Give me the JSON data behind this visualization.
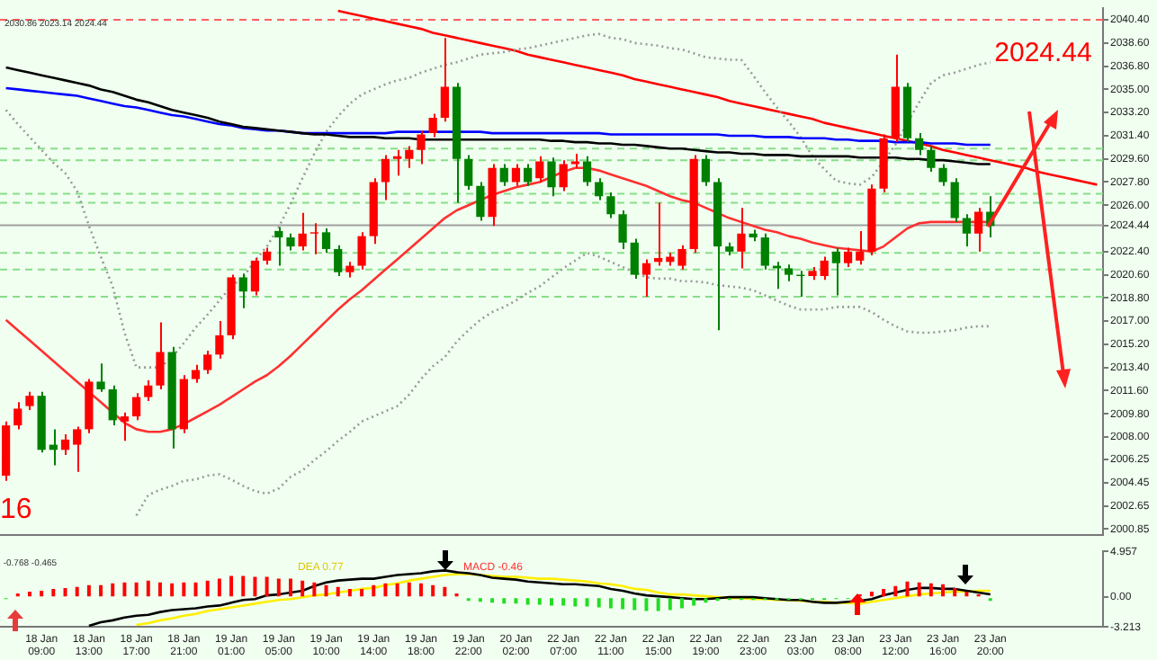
{
  "chart_data": [
    {
      "type": "candlestick",
      "categories": [
        null,
        null,
        null,
        null,
        null,
        null,
        null,
        null,
        null,
        null,
        null,
        null,
        null,
        null,
        null,
        null,
        null,
        null,
        null,
        null,
        null,
        null,
        null,
        null,
        null,
        null,
        null,
        null,
        null,
        null,
        null,
        null,
        null,
        null,
        null,
        null,
        null,
        null,
        null,
        null,
        null,
        null,
        null,
        null,
        null,
        null,
        null,
        null,
        null,
        null,
        null,
        null,
        null,
        null,
        null,
        null,
        null,
        null,
        null,
        null,
        null,
        null,
        null,
        null,
        null,
        null,
        null,
        null,
        null,
        null,
        null,
        null,
        null,
        null,
        null,
        null,
        null,
        null,
        null,
        null,
        null,
        null,
        null,
        null,
        null,
        null,
        null,
        null,
        null,
        null,
        null,
        null,
        null
      ],
      "ohlc": [
        [
          2005.0,
          2009.2,
          2004.6,
          2008.9
        ],
        [
          2008.9,
          2010.7,
          2008.6,
          2010.2
        ],
        [
          2010.4,
          2011.5,
          2010.1,
          2011.2
        ],
        [
          2011.2,
          2011.5,
          2006.8,
          2007.0
        ],
        [
          2007.4,
          2008.6,
          2005.8,
          2007.0
        ],
        [
          2007.0,
          2008.2,
          2006.6,
          2007.8
        ],
        [
          2007.4,
          2008.8,
          2005.3,
          2008.6
        ],
        [
          2008.6,
          2012.5,
          2008.3,
          2012.3
        ],
        [
          2012.3,
          2013.7,
          2011.5,
          2011.7
        ],
        [
          2011.7,
          2012.0,
          2008.9,
          2009.3
        ],
        [
          2009.2,
          2009.9,
          2007.7,
          2009.6
        ],
        [
          2009.6,
          2011.4,
          2009.3,
          2011.1
        ],
        [
          2011.1,
          2012.4,
          2010.8,
          2012.0
        ],
        [
          2012.0,
          2016.9,
          2011.7,
          2014.6
        ],
        [
          2014.6,
          2015.0,
          2007.1,
          2008.6
        ],
        [
          2008.6,
          2012.8,
          2008.3,
          2012.5
        ],
        [
          2012.5,
          2013.6,
          2012.2,
          2013.2
        ],
        [
          2013.2,
          2014.7,
          2012.9,
          2014.4
        ],
        [
          2014.4,
          2017.0,
          2014.1,
          2015.9
        ],
        [
          2015.9,
          2020.6,
          2015.6,
          2020.4
        ],
        [
          2020.4,
          2020.7,
          2018.0,
          2019.3
        ],
        [
          2019.3,
          2021.9,
          2019.0,
          2021.7
        ],
        [
          2021.7,
          2022.7,
          2021.4,
          2022.4
        ],
        [
          2024.0,
          2024.3,
          2021.3,
          2023.5
        ],
        [
          2023.5,
          2023.8,
          2022.5,
          2022.8
        ],
        [
          2022.8,
          2025.4,
          2022.5,
          2023.8
        ],
        [
          2023.8,
          2024.6,
          2022.2,
          2023.9
        ],
        [
          2023.9,
          2024.2,
          2022.3,
          2022.6
        ],
        [
          2022.6,
          2022.9,
          2020.5,
          2020.8
        ],
        [
          2020.8,
          2021.6,
          2020.4,
          2021.3
        ],
        [
          2021.3,
          2023.9,
          2021.0,
          2023.6
        ],
        [
          2023.6,
          2028.1,
          2023.0,
          2027.8
        ],
        [
          2027.8,
          2029.9,
          2026.4,
          2029.6
        ],
        [
          2029.6,
          2030.3,
          2028.3,
          2029.8
        ],
        [
          2029.6,
          2030.6,
          2028.9,
          2030.3
        ],
        [
          2030.3,
          2031.8,
          2029.2,
          2031.5
        ],
        [
          2031.6,
          2033.1,
          2031.3,
          2032.8
        ],
        [
          2032.8,
          2039.0,
          2032.5,
          2035.2
        ],
        [
          2035.2,
          2035.5,
          2026.2,
          2029.6
        ],
        [
          2029.6,
          2029.9,
          2027.2,
          2027.5
        ],
        [
          2027.5,
          2027.8,
          2024.8,
          2025.1
        ],
        [
          2025.1,
          2029.2,
          2024.4,
          2028.9
        ],
        [
          2028.9,
          2029.2,
          2027.5,
          2027.8
        ],
        [
          2027.8,
          2029.2,
          2027.5,
          2028.9
        ],
        [
          2028.9,
          2029.2,
          2027.5,
          2027.8
        ],
        [
          2028.1,
          2029.8,
          2027.8,
          2029.4
        ],
        [
          2029.4,
          2029.7,
          2026.7,
          2027.4
        ],
        [
          2027.4,
          2029.5,
          2027.1,
          2029.2
        ],
        [
          2029.2,
          2030.0,
          2028.9,
          2029.4
        ],
        [
          2029.4,
          2029.8,
          2027.5,
          2027.8
        ],
        [
          2027.8,
          2028.1,
          2026.4,
          2026.7
        ],
        [
          2026.7,
          2027.0,
          2025.0,
          2025.3
        ],
        [
          2025.3,
          2025.6,
          2022.6,
          2023.1
        ],
        [
          2023.1,
          2023.4,
          2020.3,
          2020.6
        ],
        [
          2020.6,
          2021.8,
          2018.9,
          2021.5
        ],
        [
          2021.6,
          2026.2,
          2021.3,
          2021.9
        ],
        [
          2021.6,
          2022.3,
          2021.3,
          2022.0
        ],
        [
          2021.3,
          2022.9,
          2021.0,
          2022.6
        ],
        [
          2022.6,
          2029.9,
          2022.3,
          2029.6
        ],
        [
          2029.6,
          2029.9,
          2027.5,
          2027.8
        ],
        [
          2027.8,
          2028.1,
          2016.3,
          2022.8
        ],
        [
          2022.8,
          2023.1,
          2022.1,
          2022.4
        ],
        [
          2022.4,
          2025.8,
          2021.1,
          2023.8
        ],
        [
          2023.8,
          2024.1,
          2023.2,
          2023.5
        ],
        [
          2023.5,
          2023.8,
          2021.0,
          2021.3
        ],
        [
          2021.3,
          2021.6,
          2019.5,
          2021.1
        ],
        [
          2021.1,
          2021.4,
          2020.1,
          2020.6
        ],
        [
          2020.6,
          2020.9,
          2018.9,
          2020.5
        ],
        [
          2020.5,
          2021.2,
          2020.2,
          2020.9
        ],
        [
          2020.5,
          2022.0,
          2020.2,
          2021.7
        ],
        [
          2022.4,
          2022.7,
          2019.0,
          2021.5
        ],
        [
          2021.5,
          2022.7,
          2021.2,
          2022.4
        ],
        [
          2021.7,
          2024.0,
          2021.4,
          2022.4
        ],
        [
          2022.4,
          2027.6,
          2022.1,
          2027.3
        ],
        [
          2027.3,
          2031.5,
          2027.0,
          2031.2
        ],
        [
          2031.2,
          2037.7,
          2030.9,
          2035.2
        ],
        [
          2035.2,
          2035.5,
          2030.9,
          2031.2
        ],
        [
          2031.2,
          2031.6,
          2029.9,
          2030.3
        ],
        [
          2030.3,
          2030.6,
          2028.6,
          2028.9
        ],
        [
          2028.9,
          2029.2,
          2027.5,
          2027.8
        ],
        [
          2027.8,
          2028.1,
          2024.7,
          2025.0
        ],
        [
          2025.0,
          2025.3,
          2022.8,
          2023.8
        ],
        [
          2023.8,
          2025.8,
          2022.4,
          2025.5
        ],
        [
          2025.5,
          2026.7,
          2023.5,
          2024.4
        ],
        null,
        null,
        null,
        null,
        null,
        null,
        null,
        null,
        null
      ],
      "colors": [
        "#ff0000",
        "#ff0000",
        "#ff0000",
        "#008000",
        "#008000",
        "#ff0000",
        "#ff0000",
        "#ff0000",
        "#008000",
        "#008000",
        "#ff0000",
        "#ff0000",
        "#ff0000",
        "#ff0000",
        "#008000",
        "#ff0000",
        "#ff0000",
        "#ff0000",
        "#ff0000",
        "#ff0000",
        "#008000",
        "#ff0000",
        "#ff0000",
        "#008000",
        "#008000",
        "#ff0000",
        "#ff0000",
        "#008000",
        "#008000",
        "#ff0000",
        "#ff0000",
        "#ff0000",
        "#ff0000",
        "#ff0000",
        "#ff0000",
        "#ff0000",
        "#ff0000",
        "#ff0000",
        "#008000",
        "#008000",
        "#008000",
        "#ff0000",
        "#008000",
        "#ff0000",
        "#008000",
        "#ff0000",
        "#008000",
        "#ff0000",
        "#ff0000",
        "#008000",
        "#008000",
        "#008000",
        "#008000",
        "#008000",
        "#ff0000",
        "#ff0000",
        "#ff0000",
        "#ff0000",
        "#ff0000",
        "#008000",
        "#008000",
        "#008000",
        "#ff0000",
        "#008000",
        "#008000",
        "#008000",
        "#008000",
        "#008000",
        "#ff0000",
        "#ff0000",
        "#008000",
        "#ff0000",
        "#ff0000",
        "#ff0000",
        "#ff0000",
        "#ff0000",
        "#008000",
        "#008000",
        "#008000",
        "#008000",
        "#008000",
        "#008000",
        "#ff0000",
        "#008000",
        null,
        null,
        null,
        null,
        null,
        null,
        null,
        null,
        null
      ],
      "series": [
        {
          "type": "line",
          "color": "#ff3030",
          "values": [
            2017.1,
            2016.3,
            2015.5,
            2014.7,
            2013.9,
            2013.1,
            2012.3,
            2011.5,
            2010.7,
            2009.9,
            2009.1,
            2008.6,
            2008.4,
            2008.4,
            2008.6,
            2009.0,
            2009.5,
            2010.0,
            2010.5,
            2011.1,
            2011.7,
            2012.3,
            2012.8,
            2013.5,
            2014.3,
            2015.2,
            2016.1,
            2017.0,
            2017.9,
            2018.7,
            2019.4,
            2020.2,
            2021.0,
            2021.8,
            2022.6,
            2023.4,
            2024.2,
            2025.0,
            2025.6,
            2026.0,
            2026.4,
            2026.8,
            2027.1,
            2027.4,
            2027.6,
            2027.8,
            2028.2,
            2028.6,
            2028.9,
            2028.9,
            2028.7,
            2028.4,
            2028.1,
            2027.8,
            2027.5,
            2027.1,
            2026.7,
            2026.4,
            2026.2,
            2025.8,
            2025.4,
            2025.0,
            2024.7,
            2024.4,
            2024.1,
            2023.9,
            2023.6,
            2023.4,
            2023.1,
            2022.9,
            2022.7,
            2022.6,
            2022.5,
            2022.4,
            2022.8,
            2023.5,
            2024.2,
            2024.6,
            2024.7,
            2024.7,
            2024.7,
            2024.7,
            2024.7,
            2024.7,
            null,
            null,
            null,
            null,
            null,
            null,
            null,
            null,
            null
          ]
        },
        {
          "type": "line",
          "color": "#000000",
          "values": [
            2036.7,
            2036.5,
            2036.3,
            2036.1,
            2035.9,
            2035.7,
            2035.5,
            2035.3,
            2035.0,
            2034.8,
            2034.5,
            2034.2,
            2034.0,
            2033.7,
            2033.4,
            2033.2,
            2033.0,
            2032.8,
            2032.5,
            2032.3,
            2032.1,
            2032.0,
            2031.9,
            2031.8,
            2031.7,
            2031.6,
            2031.5,
            2031.5,
            2031.4,
            2031.3,
            2031.3,
            2031.3,
            2031.2,
            2031.2,
            2031.2,
            2031.1,
            2031.1,
            2031.1,
            2031.1,
            2031.1,
            2031.1,
            2031.1,
            2031.1,
            2031.1,
            2031.1,
            2031.1,
            2031.0,
            2031.0,
            2030.9,
            2030.9,
            2030.8,
            2030.8,
            2030.7,
            2030.7,
            2030.6,
            2030.5,
            2030.4,
            2030.4,
            2030.3,
            2030.2,
            2030.1,
            2030.1,
            2030.0,
            2030.0,
            2029.9,
            2029.9,
            2029.9,
            2029.8,
            2029.8,
            2029.8,
            2029.8,
            2029.8,
            2029.7,
            2029.7,
            2029.7,
            2029.7,
            2029.6,
            2029.6,
            2029.5,
            2029.5,
            2029.4,
            2029.3,
            2029.2,
            2029.2,
            null,
            null,
            null,
            null,
            null,
            null,
            null,
            null,
            null
          ]
        },
        {
          "type": "line",
          "color": "#0000ff",
          "values": [
            2035.1,
            2035.0,
            2034.9,
            2034.8,
            2034.7,
            2034.6,
            2034.5,
            2034.3,
            2034.1,
            2033.9,
            2033.7,
            2033.6,
            2033.4,
            2033.2,
            2033.0,
            2032.9,
            2032.7,
            2032.5,
            2032.3,
            2032.2,
            2032.0,
            2031.9,
            2031.8,
            2031.8,
            2031.7,
            2031.6,
            2031.6,
            2031.6,
            2031.6,
            2031.6,
            2031.6,
            2031.6,
            2031.6,
            2031.7,
            2031.7,
            2031.7,
            2031.7,
            2031.7,
            2031.7,
            2031.7,
            2031.7,
            2031.6,
            2031.6,
            2031.6,
            2031.6,
            2031.6,
            2031.6,
            2031.6,
            2031.6,
            2031.6,
            2031.6,
            2031.5,
            2031.5,
            2031.5,
            2031.5,
            2031.5,
            2031.5,
            2031.5,
            2031.5,
            2031.5,
            2031.5,
            2031.4,
            2031.4,
            2031.4,
            2031.3,
            2031.3,
            2031.3,
            2031.2,
            2031.2,
            2031.2,
            2031.1,
            2031.1,
            2031.0,
            2031.0,
            2031.0,
            2030.9,
            2030.9,
            2030.9,
            2030.8,
            2030.8,
            2030.8,
            2030.7,
            2030.7,
            2030.7,
            null,
            null,
            null,
            null,
            null,
            null,
            null,
            null,
            null
          ]
        },
        {
          "type": "line",
          "color": "#999999",
          "line_style": "dotted",
          "values": [
            2033.4,
            2032.3,
            2031.3,
            2030.3,
            2029.3,
            2028.5,
            2027.1,
            2024.4,
            2022.0,
            2019.7,
            2016.1,
            2013.4,
            2013.4,
            2013.4,
            2014.2,
            2015.3,
            2016.5,
            2017.5,
            2018.6,
            2019.7,
            2020.4,
            2021.7,
            2022.8,
            2024.3,
            2026.1,
            2028.1,
            2030.0,
            2031.7,
            2032.9,
            2033.9,
            2034.6,
            2035.0,
            2035.4,
            2035.7,
            2035.9,
            2036.3,
            2036.6,
            2036.9,
            2037.1,
            2037.4,
            2037.7,
            2037.8,
            2037.9,
            2038.1,
            2038.2,
            2038.4,
            2038.6,
            2038.8,
            2039.0,
            2039.2,
            2039.3,
            2039.0,
            2038.9,
            2038.6,
            2038.5,
            2038.4,
            2038.2,
            2038.1,
            2037.8,
            2037.5,
            2037.4,
            2037.3,
            2037.3,
            2036.1,
            2034.8,
            2033.6,
            2032.5,
            2031.3,
            2029.8,
            2028.8,
            2027.9,
            2027.7,
            2027.6,
            2028.2,
            2029.4,
            2030.7,
            2032.4,
            2034.0,
            2035.5,
            2036.1,
            2036.3,
            2036.6,
            2036.9,
            2037.1,
            null,
            null,
            null,
            null,
            null,
            null,
            null,
            null,
            null
          ]
        },
        {
          "type": "line",
          "color": "#999999",
          "line_style": "dotted",
          "values": [
            null,
            null,
            null,
            null,
            null,
            null,
            null,
            null,
            null,
            null,
            null,
            2001.9,
            2003.5,
            2003.9,
            2004.2,
            2004.6,
            2004.7,
            2005.0,
            2005.1,
            2004.7,
            2004.2,
            2003.8,
            2003.6,
            2004.0,
            2004.9,
            2005.4,
            2006.2,
            2006.9,
            2007.7,
            2008.4,
            2009.2,
            2009.6,
            2010.0,
            2010.4,
            2011.3,
            2012.5,
            2013.5,
            2014.2,
            2015.4,
            2016.3,
            2017.1,
            2017.7,
            2018.1,
            2018.6,
            2019.2,
            2019.7,
            2020.4,
            2021.1,
            2021.7,
            2022.3,
            2022.0,
            2021.6,
            2021.2,
            2020.8,
            2020.4,
            2020.3,
            2020.3,
            2020.1,
            2020.1,
            2020.0,
            2019.8,
            2019.7,
            2019.6,
            2019.4,
            2019.0,
            2018.6,
            2018.2,
            2017.9,
            2017.9,
            2017.9,
            2018.1,
            2018.1,
            2018.1,
            2017.7,
            2017.1,
            2016.6,
            2016.2,
            2016.1,
            2016.1,
            2016.2,
            2016.3,
            2016.5,
            2016.6,
            2016.6,
            null,
            null,
            null,
            null,
            null,
            null,
            null,
            null,
            null
          ]
        },
        {
          "type": "line",
          "color": "#ff0000",
          "values": [
            null,
            null,
            null,
            null,
            null,
            null,
            null,
            null,
            null,
            null,
            null,
            null,
            null,
            null,
            null,
            null,
            null,
            null,
            null,
            null,
            null,
            null,
            null,
            null,
            null,
            null,
            null,
            null,
            2041.1,
            2040.9,
            2040.7,
            2040.5,
            2040.3,
            2040.1,
            2039.9,
            2039.7,
            2039.4,
            2039.2,
            2039.0,
            2038.8,
            2038.6,
            2038.4,
            2038.2,
            2038.0,
            2037.7,
            2037.5,
            2037.3,
            2037.1,
            2036.9,
            2036.7,
            2036.5,
            2036.3,
            2036.1,
            2035.8,
            2035.6,
            2035.4,
            2035.2,
            2035.0,
            2034.8,
            2034.6,
            2034.4,
            2034.1,
            2033.9,
            2033.7,
            2033.5,
            2033.3,
            2033.1,
            2032.9,
            2032.7,
            2032.4,
            2032.2,
            2032.0,
            2031.8,
            2031.6,
            2031.4,
            2031.2,
            2031.0,
            2030.8,
            2030.6,
            2030.3,
            2030.1,
            2029.9,
            2029.7,
            2029.5,
            2029.3,
            2029.1,
            2028.9,
            2028.6,
            2028.4,
            2028.2,
            2028.0,
            2027.8,
            2027.6
          ]
        }
      ],
      "marker": "none",
      "ylim": [
        2000.4,
        2041.3
      ],
      "yticks": [
        {
          "value": 2040.4,
          "label": "2040.40"
        },
        {
          "value": 2038.6,
          "label": "2038.60"
        },
        {
          "value": 2036.8,
          "label": "2036.80"
        },
        {
          "value": 2035,
          "label": "2035.00"
        },
        {
          "value": 2033.2,
          "label": "2033.20"
        },
        {
          "value": 2031.4,
          "label": "2031.40"
        },
        {
          "value": 2029.6,
          "label": "2029.60"
        },
        {
          "value": 2027.8,
          "label": "2027.80"
        },
        {
          "value": 2026,
          "label": "2026.00"
        },
        2024.44,
        {
          "value": 2022.4,
          "label": "2022.40"
        },
        {
          "value": 2020.6,
          "label": "2020.60"
        },
        {
          "value": 2018.8,
          "label": "2018.80"
        },
        {
          "value": 2017,
          "label": "2017.00"
        },
        {
          "value": 2015.2,
          "label": "2015.20"
        },
        {
          "value": 2013.4,
          "label": "2013.40"
        },
        {
          "value": 2011.6,
          "label": "2011.60"
        },
        {
          "value": 2009.8,
          "label": "2009.80"
        },
        {
          "value": 2008,
          "label": "2008.00"
        },
        2006.25,
        2004.45,
        2002.65,
        2000.85
      ],
      "ref_lines": [
        {
          "axis": "y",
          "value": 2040.4,
          "color": "#ff6060",
          "line_style": "dashed"
        },
        {
          "axis": "y",
          "value": 2030.4,
          "color": "#88dd88",
          "line_style": "dashed"
        },
        {
          "axis": "y",
          "value": 2029.5,
          "color": "#88dd88",
          "line_style": "dashed"
        },
        {
          "axis": "y",
          "value": 2026.9,
          "color": "#88dd88",
          "line_style": "dashed"
        },
        {
          "axis": "y",
          "value": 2026.2,
          "color": "#88dd88",
          "line_style": "dashed"
        },
        {
          "axis": "y",
          "value": 2024.44,
          "color": "#a0a0a0",
          "line_style": "solid"
        },
        {
          "axis": "y",
          "value": 2022.3,
          "color": "#88dd88",
          "line_style": "dashed"
        },
        {
          "axis": "y",
          "value": 2021.0,
          "color": "#88dd88",
          "line_style": "dashed"
        },
        {
          "axis": "y",
          "value": 2018.9,
          "color": "#88dd88",
          "line_style": "dashed"
        }
      ],
      "annotations": [
        "2030.86 2023.14 2024.44",
        "2024.44",
        "16"
      ],
      "grid": false,
      "legend": false,
      "tick_labels": "y"
    },
    {
      "type": "bar",
      "categories": [
        null,
        null,
        null,
        "18 Jan 09:00",
        null,
        null,
        null,
        "18 Jan 13:00",
        null,
        null,
        null,
        "18 Jan 17:00",
        null,
        null,
        null,
        "18 Jan 21:00",
        null,
        null,
        null,
        "19 Jan 01:00",
        null,
        null,
        null,
        "19 Jan 05:00",
        null,
        null,
        null,
        "19 Jan 10:00",
        null,
        null,
        null,
        "19 Jan 14:00",
        null,
        null,
        null,
        "19 Jan 18:00",
        null,
        null,
        null,
        "19 Jan 22:00",
        null,
        null,
        null,
        "20 Jan 02:00",
        null,
        null,
        null,
        "22 Jan 07:00",
        null,
        null,
        null,
        "22 Jan 11:00",
        null,
        null,
        null,
        "22 Jan 15:00",
        null,
        null,
        null,
        "22 Jan 19:00",
        null,
        null,
        null,
        "22 Jan 23:00",
        null,
        null,
        null,
        "23 Jan 03:00",
        null,
        null,
        null,
        "23 Jan 08:00",
        null,
        null,
        null,
        "23 Jan 12:00",
        null,
        null,
        null,
        "23 Jan 16:00",
        null,
        null,
        null,
        "23 Jan 20:00",
        null,
        null,
        null,
        null,
        null,
        null,
        null,
        null,
        null
      ],
      "values": [
        -0.2,
        0.4,
        0.6,
        0.7,
        0.9,
        1.0,
        1.1,
        1.3,
        1.3,
        1.5,
        1.6,
        1.6,
        1.8,
        1.6,
        1.5,
        1.6,
        1.6,
        1.8,
        2.0,
        2.3,
        2.3,
        2.2,
        2.2,
        2.0,
        2.0,
        1.8,
        1.6,
        1.3,
        1.1,
        0.9,
        0.9,
        1.3,
        1.5,
        1.5,
        1.6,
        1.5,
        1.3,
        1.1,
        0.4,
        -0.4,
        -0.5,
        -0.6,
        -0.7,
        -0.7,
        -0.8,
        -0.8,
        -0.9,
        -0.9,
        -1.0,
        -1.0,
        -1.1,
        -1.2,
        -1.3,
        -1.4,
        -1.5,
        -1.5,
        -1.4,
        -1.2,
        -0.9,
        -0.6,
        -0.4,
        -0.3,
        -0.3,
        -0.3,
        -0.3,
        -0.3,
        -0.3,
        -0.3,
        -0.3,
        -0.3,
        -0.2,
        -0.2,
        0.3,
        0.6,
        0.9,
        1.2,
        1.7,
        1.6,
        1.5,
        1.4,
        1.0,
        0.6,
        0.3,
        -0.4,
        null,
        null,
        null,
        null,
        null,
        null,
        null,
        null,
        null
      ],
      "colors": [
        "#22dd22",
        "#ff0000",
        "#ff0000",
        "#ff0000",
        "#ff0000",
        "#ff0000",
        "#ff0000",
        "#ff0000",
        "#ff0000",
        "#ff0000",
        "#ff0000",
        "#ff0000",
        "#ff0000",
        "#ff0000",
        "#ff0000",
        "#ff0000",
        "#ff0000",
        "#ff0000",
        "#ff0000",
        "#ff0000",
        "#ff0000",
        "#ff0000",
        "#ff0000",
        "#ff0000",
        "#ff0000",
        "#ff0000",
        "#ff0000",
        "#ff0000",
        "#ff0000",
        "#ff0000",
        "#ff0000",
        "#ff0000",
        "#ff0000",
        "#ff0000",
        "#ff0000",
        "#ff0000",
        "#ff0000",
        "#ff0000",
        "#ff0000",
        "#22dd22",
        "#22dd22",
        "#22dd22",
        "#22dd22",
        "#22dd22",
        "#22dd22",
        "#22dd22",
        "#22dd22",
        "#22dd22",
        "#22dd22",
        "#22dd22",
        "#22dd22",
        "#22dd22",
        "#22dd22",
        "#22dd22",
        "#22dd22",
        "#22dd22",
        "#22dd22",
        "#22dd22",
        "#22dd22",
        "#22dd22",
        "#22dd22",
        "#22dd22",
        "#22dd22",
        "#22dd22",
        "#22dd22",
        "#22dd22",
        "#22dd22",
        "#22dd22",
        "#22dd22",
        "#22dd22",
        "#22dd22",
        "#22dd22",
        "#ff0000",
        "#ff0000",
        "#ff0000",
        "#ff0000",
        "#ff0000",
        "#ff0000",
        "#ff0000",
        "#ff0000",
        "#ff0000",
        "#ff0000",
        "#ff0000",
        "#22dd22",
        null,
        null,
        null,
        null,
        null,
        null,
        null,
        null,
        null
      ],
      "series": [
        {
          "type": "line",
          "color": "#000000",
          "values": [
            null,
            null,
            null,
            null,
            null,
            null,
            null,
            -3.1,
            -2.7,
            -2.5,
            -2.2,
            -2.0,
            -1.9,
            -1.6,
            -1.4,
            -1.3,
            -1.2,
            -1.0,
            -0.9,
            -0.6,
            -0.3,
            -0.2,
            0.2,
            0.3,
            0.5,
            0.7,
            1.2,
            1.6,
            1.8,
            1.9,
            2.0,
            2.0,
            2.2,
            2.4,
            2.5,
            2.6,
            2.8,
            2.9,
            2.7,
            2.6,
            2.4,
            2.1,
            2.0,
            1.9,
            1.7,
            1.6,
            1.5,
            1.4,
            1.4,
            1.3,
            1.2,
            0.9,
            0.7,
            0.4,
            0.2,
            0.1,
            0.0,
            -0.1,
            -0.2,
            -0.2,
            -0.1,
            0.0,
            0.0,
            0.0,
            -0.1,
            -0.2,
            -0.3,
            -0.3,
            -0.5,
            -0.6,
            -0.6,
            -0.5,
            -0.4,
            -0.2,
            0.2,
            0.5,
            0.8,
            1.0,
            1.0,
            0.9,
            0.9,
            0.7,
            0.5,
            0.3,
            null,
            null,
            null,
            null,
            null,
            null,
            null,
            null,
            null
          ]
        },
        {
          "type": "line",
          "color": "#ffee00",
          "values": [
            null,
            null,
            null,
            null,
            null,
            null,
            null,
            null,
            null,
            null,
            null,
            -3.0,
            -2.8,
            -2.5,
            -2.3,
            -2.0,
            -1.8,
            -1.5,
            -1.3,
            -1.1,
            -0.9,
            -0.7,
            -0.5,
            -0.3,
            -0.2,
            0.0,
            0.2,
            0.3,
            0.5,
            0.7,
            0.9,
            1.0,
            1.3,
            1.5,
            1.8,
            2.0,
            2.2,
            2.4,
            2.5,
            2.5,
            2.4,
            2.3,
            2.2,
            2.2,
            2.1,
            2.0,
            2.0,
            1.9,
            1.8,
            1.7,
            1.5,
            1.4,
            1.2,
            0.9,
            0.8,
            0.5,
            0.3,
            0.3,
            0.2,
            0.1,
            0.0,
            -0.1,
            -0.1,
            -0.2,
            -0.2,
            -0.3,
            -0.3,
            -0.4,
            -0.5,
            -0.5,
            -0.6,
            -0.6,
            -0.7,
            -0.5,
            -0.3,
            -0.1,
            0.1,
            0.3,
            0.4,
            0.5,
            0.6,
            0.6,
            0.7,
            0.7,
            null,
            null,
            null,
            null,
            null,
            null,
            null,
            null,
            null
          ]
        }
      ],
      "marker": "none",
      "ylim": [
        -3.213,
        4.957
      ],
      "yticks": [
        4.957,
        {
          "value": 0,
          "label": "0.00"
        },
        -3.213
      ],
      "annotations": [
        "-0.768 -0.465",
        "DEA 0.77",
        "MACD -0.46"
      ],
      "grid": false,
      "legend": false
    }
  ]
}
